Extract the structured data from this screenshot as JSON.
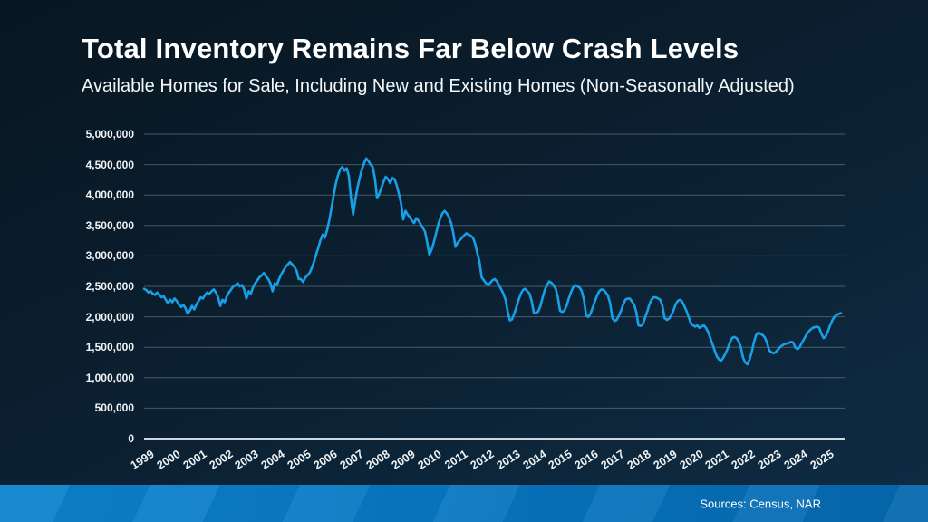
{
  "slide": {
    "title": "Total Inventory Remains Far Below Crash Levels",
    "subtitle": "Available Homes for Sale, Including New and Existing Homes (Non-Seasonally Adjusted)",
    "source": "Sources: Census, NAR"
  },
  "colors": {
    "line": "#18a0e6",
    "grid": "rgba(200,215,225,0.32)",
    "axis": "rgba(225,235,242,0.9)",
    "label": "#f2f5f7",
    "footer_left": "#0c83ce",
    "footer_right": "#0568ae",
    "background_top": "#081621",
    "background_bottom": "#0f2c44"
  },
  "chart_data": {
    "type": "line",
    "title": "Total Inventory Remains Far Below Crash Levels",
    "subtitle": "Available Homes for Sale, Including New and Existing Homes (Non-Seasonally Adjusted)",
    "xlabel": "",
    "ylabel": "",
    "ylim": [
      0,
      5000000
    ],
    "y_tick_step": 500000,
    "grid": true,
    "legend": false,
    "x_tick_labels": [
      "1999",
      "2000",
      "2001",
      "2002",
      "2003",
      "2004",
      "2005",
      "2006",
      "2007",
      "2008",
      "2009",
      "2010",
      "2011",
      "2012",
      "2013",
      "2014",
      "2015",
      "2016",
      "2017",
      "2018",
      "2019",
      "2020",
      "2021",
      "2022",
      "2023",
      "2024",
      "2025"
    ],
    "x_start_year": 1999,
    "points_per_year": 12,
    "units": "millions of homes",
    "series": [
      {
        "name": "Available homes for sale (new + existing)",
        "values_millions": [
          2.46,
          2.44,
          2.4,
          2.42,
          2.38,
          2.36,
          2.4,
          2.36,
          2.32,
          2.34,
          2.28,
          2.22,
          2.28,
          2.24,
          2.3,
          2.26,
          2.2,
          2.16,
          2.2,
          2.14,
          2.05,
          2.1,
          2.18,
          2.12,
          2.2,
          2.26,
          2.32,
          2.3,
          2.36,
          2.4,
          2.38,
          2.42,
          2.45,
          2.4,
          2.32,
          2.18,
          2.28,
          2.24,
          2.34,
          2.4,
          2.45,
          2.5,
          2.52,
          2.55,
          2.5,
          2.52,
          2.45,
          2.3,
          2.42,
          2.38,
          2.48,
          2.55,
          2.6,
          2.65,
          2.68,
          2.72,
          2.66,
          2.62,
          2.55,
          2.42,
          2.55,
          2.52,
          2.62,
          2.7,
          2.76,
          2.82,
          2.86,
          2.9,
          2.86,
          2.82,
          2.76,
          2.62,
          2.62,
          2.57,
          2.64,
          2.68,
          2.72,
          2.8,
          2.9,
          3.02,
          3.14,
          3.26,
          3.35,
          3.3,
          3.42,
          3.58,
          3.78,
          3.98,
          4.18,
          4.32,
          4.42,
          4.46,
          4.4,
          4.44,
          4.32,
          3.95,
          3.68,
          3.92,
          4.12,
          4.28,
          4.42,
          4.52,
          4.6,
          4.56,
          4.5,
          4.46,
          4.28,
          3.95,
          4.02,
          4.12,
          4.22,
          4.3,
          4.26,
          4.2,
          4.28,
          4.26,
          4.16,
          4.02,
          3.86,
          3.6,
          3.74,
          3.68,
          3.64,
          3.58,
          3.54,
          3.62,
          3.58,
          3.52,
          3.46,
          3.4,
          3.22,
          3.02,
          3.1,
          3.22,
          3.36,
          3.5,
          3.62,
          3.7,
          3.74,
          3.7,
          3.64,
          3.54,
          3.38,
          3.15,
          3.22,
          3.26,
          3.3,
          3.34,
          3.37,
          3.35,
          3.33,
          3.3,
          3.2,
          3.05,
          2.9,
          2.65,
          2.6,
          2.55,
          2.52,
          2.56,
          2.6,
          2.62,
          2.58,
          2.52,
          2.45,
          2.38,
          2.28,
          2.08,
          1.94,
          1.96,
          2.05,
          2.16,
          2.28,
          2.38,
          2.44,
          2.46,
          2.42,
          2.38,
          2.25,
          2.06,
          2.06,
          2.09,
          2.18,
          2.32,
          2.44,
          2.52,
          2.58,
          2.56,
          2.52,
          2.46,
          2.32,
          2.1,
          2.08,
          2.1,
          2.18,
          2.3,
          2.4,
          2.48,
          2.52,
          2.5,
          2.48,
          2.42,
          2.28,
          2.02,
          2.0,
          2.05,
          2.15,
          2.25,
          2.35,
          2.42,
          2.45,
          2.44,
          2.4,
          2.35,
          2.22,
          1.98,
          1.93,
          1.95,
          2.02,
          2.1,
          2.2,
          2.28,
          2.3,
          2.3,
          2.25,
          2.2,
          2.08,
          1.86,
          1.85,
          1.88,
          1.98,
          2.08,
          2.2,
          2.28,
          2.32,
          2.32,
          2.3,
          2.28,
          2.18,
          1.98,
          1.95,
          1.97,
          2.02,
          2.1,
          2.2,
          2.26,
          2.28,
          2.25,
          2.18,
          2.1,
          2.0,
          1.9,
          1.86,
          1.84,
          1.86,
          1.82,
          1.84,
          1.86,
          1.82,
          1.75,
          1.65,
          1.55,
          1.45,
          1.35,
          1.3,
          1.28,
          1.33,
          1.4,
          1.48,
          1.58,
          1.65,
          1.67,
          1.65,
          1.6,
          1.5,
          1.33,
          1.25,
          1.22,
          1.3,
          1.42,
          1.58,
          1.7,
          1.74,
          1.72,
          1.7,
          1.66,
          1.58,
          1.45,
          1.42,
          1.4,
          1.42,
          1.46,
          1.5,
          1.53,
          1.55,
          1.56,
          1.57,
          1.59,
          1.58,
          1.5,
          1.47,
          1.5,
          1.57,
          1.63,
          1.7,
          1.75,
          1.79,
          1.82,
          1.83,
          1.84,
          1.82,
          1.72,
          1.65,
          1.68,
          1.76,
          1.86,
          1.94,
          2.0,
          2.03,
          2.05,
          2.06
        ]
      }
    ]
  }
}
